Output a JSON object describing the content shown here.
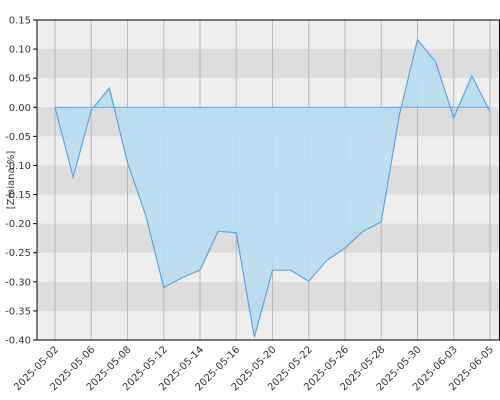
{
  "chart_data": {
    "type": "area",
    "y_label": "[Zmiana %]",
    "categories": [
      "2025-05-02",
      null,
      "2025-05-06",
      null,
      "2025-05-08",
      null,
      "2025-05-12",
      null,
      "2025-05-14",
      null,
      "2025-05-16",
      null,
      "2025-05-20",
      null,
      "2025-05-22",
      null,
      "2025-05-26",
      null,
      "2025-05-28",
      null,
      "2025-05-30",
      null,
      "2025-06-03",
      null,
      "2025-06-05"
    ],
    "values": [
      0.0,
      -0.12,
      -0.005,
      0.033,
      -0.095,
      -0.185,
      -0.31,
      -0.293,
      -0.28,
      -0.213,
      -0.216,
      -0.395,
      -0.28,
      -0.28,
      -0.299,
      -0.263,
      -0.242,
      -0.213,
      -0.197,
      -0.013,
      0.116,
      0.078,
      -0.018,
      0.054,
      -0.008
    ],
    "color": "#5ba4e6",
    "fill_color": "#b5dcef",
    "ylim": [
      -0.4,
      0.15
    ],
    "yticks": [
      {
        "value": -0.4,
        "label": "-0.40"
      },
      -0.35,
      {
        "value": -0.3,
        "label": "-0.30"
      },
      -0.25,
      {
        "value": -0.2,
        "label": "-0.20"
      },
      -0.15,
      {
        "value": -0.1,
        "label": "-0.10"
      },
      -0.05,
      {
        "value": 0,
        "label": "0.00"
      },
      0.05,
      {
        "value": 0.1,
        "label": "0.10"
      },
      0.15
    ],
    "grid": true,
    "banded_background": true
  }
}
